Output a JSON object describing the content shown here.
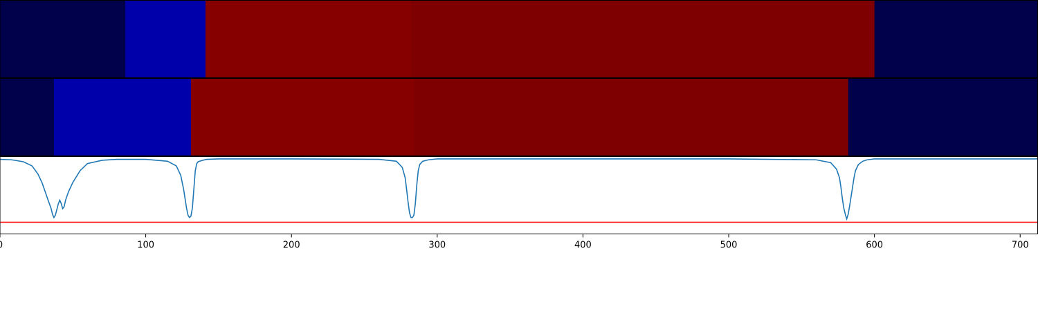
{
  "chart_data": [
    {
      "type": "heatmap",
      "title": "",
      "xlabel": "",
      "ylabel": "",
      "xlim": [
        0,
        712
      ],
      "segments": [
        {
          "start": 0,
          "end": 86,
          "color": "#00004b"
        },
        {
          "start": 86,
          "end": 141,
          "color": "#0000aa"
        },
        {
          "start": 141,
          "end": 282,
          "color": "#870000"
        },
        {
          "start": 282,
          "end": 600,
          "color": "#7f0000"
        },
        {
          "start": 600,
          "end": 712,
          "color": "#00004b"
        }
      ]
    },
    {
      "type": "heatmap",
      "title": "",
      "xlabel": "",
      "ylabel": "",
      "xlim": [
        0,
        712
      ],
      "segments": [
        {
          "start": 0,
          "end": 37,
          "color": "#00004b"
        },
        {
          "start": 37,
          "end": 131,
          "color": "#0000aa"
        },
        {
          "start": 131,
          "end": 284,
          "color": "#870000"
        },
        {
          "start": 284,
          "end": 582,
          "color": "#7f0000"
        },
        {
          "start": 582,
          "end": 712,
          "color": "#00004b"
        }
      ]
    },
    {
      "type": "line",
      "title": "",
      "xlabel": "",
      "ylabel": "",
      "xlim": [
        0,
        712
      ],
      "ylim": [
        -1.6,
        0.05
      ],
      "xticks": [
        0,
        100,
        200,
        300,
        400,
        500,
        600,
        700
      ],
      "grid": false,
      "series": [
        {
          "color": "#1f77b4",
          "x": [
            0,
            8,
            16,
            22,
            26,
            29,
            31,
            33,
            35,
            36,
            37,
            38,
            39,
            40,
            41,
            42,
            43,
            44,
            45,
            47,
            50,
            55,
            60,
            70,
            80,
            100,
            115,
            121,
            124,
            126,
            127,
            128,
            129,
            130,
            131,
            132,
            133,
            134,
            135,
            136,
            137,
            139,
            142,
            150,
            200,
            260,
            272,
            276,
            278,
            279,
            280,
            281,
            282,
            283,
            284,
            285,
            286,
            287,
            288,
            290,
            294,
            300,
            400,
            500,
            560,
            570,
            574,
            576,
            577,
            578,
            579,
            580,
            581,
            582,
            583,
            584,
            585,
            586,
            587,
            589,
            592,
            595,
            600,
            650,
            712
          ],
          "y": [
            -0.01,
            -0.02,
            -0.06,
            -0.15,
            -0.32,
            -0.52,
            -0.7,
            -0.88,
            -1.05,
            -1.18,
            -1.25,
            -1.2,
            -1.08,
            -0.96,
            -0.88,
            -0.95,
            -1.06,
            -1.02,
            -0.88,
            -0.7,
            -0.5,
            -0.25,
            -0.1,
            -0.03,
            -0.01,
            -0.01,
            -0.05,
            -0.15,
            -0.35,
            -0.65,
            -0.85,
            -1.05,
            -1.2,
            -1.25,
            -1.22,
            -1.05,
            -0.65,
            -0.25,
            -0.1,
            -0.06,
            -0.05,
            -0.03,
            -0.01,
            0.0,
            0.0,
            -0.01,
            -0.05,
            -0.18,
            -0.4,
            -0.65,
            -0.92,
            -1.15,
            -1.25,
            -1.25,
            -1.2,
            -0.95,
            -0.55,
            -0.25,
            -0.12,
            -0.05,
            -0.02,
            0.0,
            0.0,
            0.0,
            -0.02,
            -0.08,
            -0.22,
            -0.4,
            -0.6,
            -0.85,
            -1.05,
            -1.18,
            -1.28,
            -1.18,
            -1.0,
            -0.8,
            -0.6,
            -0.4,
            -0.25,
            -0.12,
            -0.05,
            -0.02,
            0.0,
            0.0,
            0.0
          ]
        },
        {
          "color": "#ff0000",
          "x": [
            0,
            712
          ],
          "y": [
            -1.35,
            -1.35
          ]
        }
      ]
    }
  ]
}
